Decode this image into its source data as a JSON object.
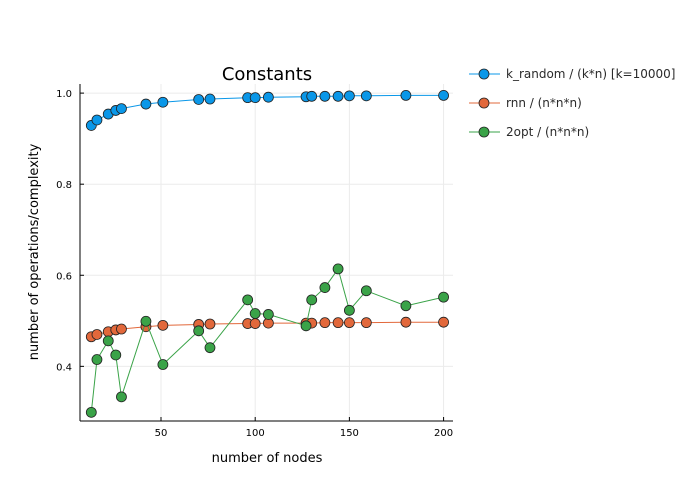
{
  "chart_data": {
    "type": "line",
    "title": "Constants",
    "xlabel": "number of nodes",
    "ylabel": "number of operations/complexity",
    "xlim": [
      7,
      205
    ],
    "ylim": [
      0.28,
      1.02
    ],
    "xticks": [
      50,
      100,
      150,
      200
    ],
    "xtick_labels": [
      "50",
      "100",
      "150",
      "200"
    ],
    "yticks": [
      0.4,
      0.6,
      0.8,
      1.0
    ],
    "ytick_labels": [
      "0.4",
      "0.6",
      "0.8",
      "1.0"
    ],
    "grid": true,
    "legend_position": "right",
    "series": [
      {
        "name": "k_random / (k*n) [k=10000]",
        "color": "#0a97e8",
        "x": [
          13,
          16,
          22,
          26,
          29,
          42,
          51,
          70,
          76,
          96,
          100,
          107,
          127,
          130,
          137,
          144,
          150,
          159,
          180,
          200
        ],
        "y": [
          0.929,
          0.941,
          0.954,
          0.962,
          0.966,
          0.976,
          0.98,
          0.986,
          0.987,
          0.99,
          0.99,
          0.991,
          0.992,
          0.993,
          0.993,
          0.993,
          0.994,
          0.994,
          0.995,
          0.995
        ]
      },
      {
        "name": "rnn / (n*n*n)",
        "color": "#e2683b",
        "x": [
          13,
          16,
          22,
          26,
          29,
          42,
          51,
          70,
          76,
          96,
          100,
          107,
          127,
          130,
          137,
          144,
          150,
          159,
          180,
          200
        ],
        "y": [
          0.465,
          0.47,
          0.476,
          0.48,
          0.482,
          0.487,
          0.49,
          0.492,
          0.493,
          0.494,
          0.494,
          0.495,
          0.495,
          0.495,
          0.496,
          0.496,
          0.496,
          0.496,
          0.497,
          0.497
        ]
      },
      {
        "name": "2opt / (n*n*n)",
        "color": "#3aa348",
        "x": [
          13,
          16,
          22,
          26,
          29,
          42,
          51,
          70,
          76,
          96,
          100,
          107,
          127,
          130,
          137,
          144,
          150,
          159,
          180,
          200
        ],
        "y": [
          0.299,
          0.415,
          0.456,
          0.425,
          0.333,
          0.499,
          0.404,
          0.478,
          0.441,
          0.546,
          0.516,
          0.514,
          0.489,
          0.546,
          0.573,
          0.614,
          0.523,
          0.566,
          0.533,
          0.552
        ]
      }
    ]
  }
}
